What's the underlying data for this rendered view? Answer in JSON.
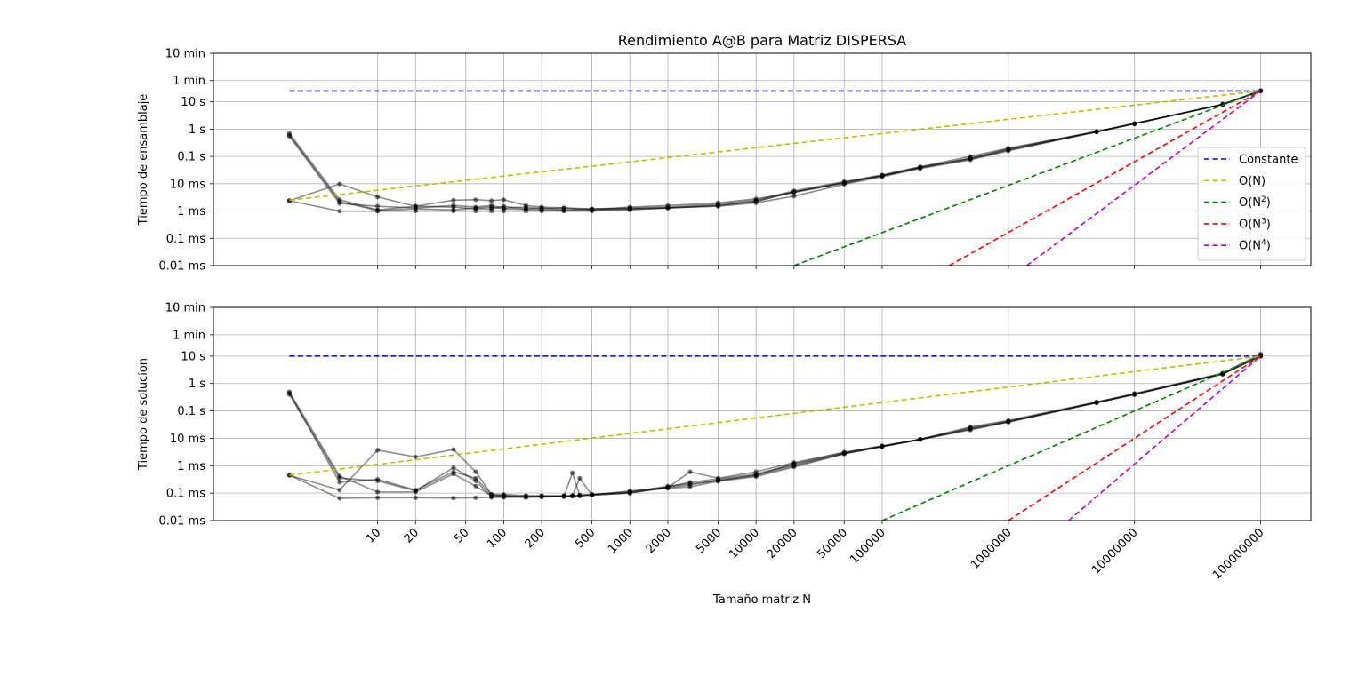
{
  "figure": {
    "title": "Rendimiento A@B para Matriz DISPERSA",
    "xlabel": "Tamaño matriz N"
  },
  "chart_data": [
    {
      "type": "line",
      "title": "Rendimiento A@B para Matriz DISPERSA",
      "ylabel": "Tiempo de ensamblaje",
      "xscale": "log",
      "yscale": "log",
      "xlim": [
        0.5,
        250000000
      ],
      "ylim": [
        1e-05,
        600
      ],
      "x_ticks": [
        10,
        20,
        50,
        100,
        200,
        500,
        1000,
        2000,
        5000,
        10000,
        20000,
        50000,
        100000,
        1000000,
        10000000,
        100000000
      ],
      "y_ticks": [
        {
          "v": 1e-05,
          "label": "0.01 ms"
        },
        {
          "v": 0.0001,
          "label": "0.1 ms"
        },
        {
          "v": 0.001,
          "label": "1 ms"
        },
        {
          "v": 0.01,
          "label": "10 ms"
        },
        {
          "v": 0.1,
          "label": "0.1 s"
        },
        {
          "v": 1,
          "label": "1 s"
        },
        {
          "v": 10,
          "label": "10 s"
        },
        {
          "v": 60,
          "label": "1 min"
        },
        {
          "v": 600,
          "label": "10 min"
        }
      ],
      "grid": true,
      "legend": {
        "position": "right",
        "entries": [
          {
            "label": "Constante",
            "color": "#0000cc",
            "sup": ""
          },
          {
            "label": "O(N)",
            "color": "#bfbf00",
            "sup": ""
          },
          {
            "label": "O(N2)",
            "color": "#008000",
            "sup": "2"
          },
          {
            "label": "O(N3)",
            "color": "#ff0000",
            "sup": "3"
          },
          {
            "label": "O(N4)",
            "color": "#bf00bf",
            "sup": "4"
          }
        ]
      },
      "reference_lines": [
        {
          "name": "Constante",
          "color": "#0000cc",
          "x": [
            2,
            100000000
          ],
          "y": [
            25,
            25
          ]
        },
        {
          "name": "O(N)",
          "color": "#bfbf00",
          "x": [
            2,
            100000000
          ],
          "y": [
            0.0025,
            25
          ]
        },
        {
          "name": "O(N2)",
          "color": "#008000",
          "x": [
            20000,
            100000000
          ],
          "y": [
            1e-05,
            25
          ]
        },
        {
          "name": "O(N3)",
          "color": "#ff0000",
          "x": [
            340000,
            100000000
          ],
          "y": [
            1e-05,
            25
          ]
        },
        {
          "name": "O(N4)",
          "color": "#bf00bf",
          "x": [
            1400000,
            100000000
          ],
          "y": [
            1e-05,
            25
          ]
        }
      ],
      "series": [
        {
          "x": [
            2,
            5,
            10,
            20,
            40,
            60,
            80,
            100,
            150,
            200,
            300,
            500,
            1000,
            2000,
            5000,
            10000,
            20000,
            50000,
            100000,
            200000,
            500000,
            1000000,
            5000000,
            10000000,
            50000000,
            100000000
          ],
          "y": [
            0.6,
            0.0022,
            0.00105,
            0.0012,
            0.0011,
            0.0013,
            0.0014,
            0.0012,
            0.00115,
            0.0011,
            0.00105,
            0.00105,
            0.0012,
            0.0013,
            0.0016,
            0.0022,
            0.005,
            0.011,
            0.02,
            0.04,
            0.085,
            0.18,
            0.8,
            1.6,
            8,
            25
          ]
        },
        {
          "x": [
            2,
            5,
            10,
            20,
            40,
            60,
            80,
            100,
            150,
            200,
            300,
            500,
            1000,
            2000,
            5000,
            10000,
            20000,
            50000,
            100000,
            200000,
            500000,
            1000000,
            5000000,
            10000000,
            50000000,
            100000000
          ],
          "y": [
            0.7,
            0.0026,
            0.0011,
            0.0015,
            0.0014,
            0.0012,
            0.0012,
            0.0015,
            0.0012,
            0.0013,
            0.0011,
            0.0012,
            0.0013,
            0.0014,
            0.0018,
            0.0025,
            0.0055,
            0.012,
            0.021,
            0.042,
            0.1,
            0.2,
            0.82,
            1.6,
            8.2,
            26
          ]
        },
        {
          "x": [
            2,
            5,
            10,
            20,
            40,
            60,
            80,
            100,
            150,
            200,
            300,
            500,
            1000,
            2000,
            5000,
            10000,
            20000,
            50000,
            100000,
            200000,
            500000,
            1000000,
            5000000,
            10000000,
            50000000,
            100000000
          ],
          "y": [
            0.55,
            0.0019,
            0.0015,
            0.0013,
            0.0016,
            0.0014,
            0.0016,
            0.0013,
            0.0014,
            0.0012,
            0.0013,
            0.0011,
            0.0014,
            0.0016,
            0.002,
            0.0028,
            0.0048,
            0.0105,
            0.019,
            0.038,
            0.08,
            0.17,
            0.78,
            1.55,
            8,
            25
          ]
        },
        {
          "x": [
            2,
            5,
            10,
            20,
            40,
            60,
            80,
            100,
            150,
            200,
            300,
            500,
            1000,
            2000,
            5000,
            10000,
            20000,
            50000,
            100000,
            200000,
            500000,
            1000000,
            5000000,
            10000000,
            50000000,
            100000000
          ],
          "y": [
            0.0024,
            0.0098,
            0.0033,
            0.0015,
            0.0025,
            0.0026,
            0.0024,
            0.0026,
            0.0016,
            0.0014,
            0.0013,
            0.0012,
            0.0012,
            0.0013,
            0.0015,
            0.002,
            0.0035,
            0.0095,
            0.018,
            0.036,
            0.075,
            0.16,
            0.8,
            1.6,
            8,
            25
          ]
        },
        {
          "x": [
            2,
            5,
            10,
            20,
            40,
            60,
            80,
            100,
            150,
            200,
            300,
            500,
            1000,
            2000,
            5000,
            10000,
            20000,
            50000,
            100000,
            200000,
            500000,
            1000000,
            5000000,
            10000000,
            50000000,
            100000000
          ],
          "y": [
            0.0024,
            0.00099,
            0.00099,
            0.001,
            0.001,
            0.001,
            0.001,
            0.001,
            0.001,
            0.001,
            0.001,
            0.001,
            0.0011,
            0.0013,
            0.0016,
            0.0023,
            0.005,
            0.011,
            0.02,
            0.04,
            0.085,
            0.19,
            0.8,
            1.6,
            8,
            25
          ]
        }
      ]
    },
    {
      "type": "line",
      "ylabel": "Tiempo de solucion",
      "xlabel": "Tamaño matriz N",
      "xscale": "log",
      "yscale": "log",
      "xlim": [
        0.5,
        250000000
      ],
      "ylim": [
        1e-05,
        600
      ],
      "x_ticks": [
        10,
        20,
        50,
        100,
        200,
        500,
        1000,
        2000,
        5000,
        10000,
        20000,
        50000,
        100000,
        1000000,
        10000000,
        100000000
      ],
      "y_ticks": [
        {
          "v": 1e-05,
          "label": "0.01 ms"
        },
        {
          "v": 0.0001,
          "label": "0.1 ms"
        },
        {
          "v": 0.001,
          "label": "1 ms"
        },
        {
          "v": 0.01,
          "label": "10 ms"
        },
        {
          "v": 0.1,
          "label": "0.1 s"
        },
        {
          "v": 1,
          "label": "1 s"
        },
        {
          "v": 10,
          "label": "10 s"
        },
        {
          "v": 60,
          "label": "1 min"
        },
        {
          "v": 600,
          "label": "10 min"
        }
      ],
      "grid": true,
      "reference_lines": [
        {
          "name": "Constante",
          "color": "#0000cc",
          "x": [
            2,
            100000000
          ],
          "y": [
            10,
            10
          ]
        },
        {
          "name": "O(N)",
          "color": "#bfbf00",
          "x": [
            2,
            100000000
          ],
          "y": [
            0.00045,
            10
          ]
        },
        {
          "name": "O(N2)",
          "color": "#008000",
          "x": [
            100000,
            100000000
          ],
          "y": [
            1e-05,
            10
          ]
        },
        {
          "name": "O(N3)",
          "color": "#ff0000",
          "x": [
            1000000,
            100000000
          ],
          "y": [
            1e-05,
            10
          ]
        },
        {
          "name": "O(N4)",
          "color": "#bf00bf",
          "x": [
            3000000,
            100000000
          ],
          "y": [
            1e-05,
            10
          ]
        }
      ],
      "series": [
        {
          "x": [
            2,
            5,
            10,
            20,
            40,
            60,
            80,
            100,
            150,
            200,
            300,
            350,
            400,
            500,
            1000,
            2000,
            3000,
            5000,
            10000,
            20000,
            50000,
            100000,
            200000,
            500000,
            1000000,
            5000000,
            10000000,
            50000000,
            100000000
          ],
          "y": [
            0.4,
            0.00035,
            0.00028,
            0.00012,
            0.00085,
            0.00028,
            7.5e-05,
            8e-05,
            7.2e-05,
            7.5e-05,
            7.8e-05,
            8e-05,
            8.2e-05,
            8.5e-05,
            0.0001,
            0.00017,
            0.00025,
            0.00033,
            0.0005,
            0.0011,
            0.0028,
            0.005,
            0.009,
            0.022,
            0.04,
            0.2,
            0.4,
            2.2,
            10
          ]
        },
        {
          "x": [
            2,
            5,
            10,
            20,
            40,
            60,
            80,
            100,
            150,
            200,
            300,
            350,
            400,
            500,
            1000,
            2000,
            3000,
            5000,
            10000,
            20000,
            50000,
            100000,
            200000,
            500000,
            1000000,
            5000000,
            10000000,
            50000000,
            100000000
          ],
          "y": [
            0.45,
            0.00025,
            0.00032,
            0.00013,
            0.0006,
            0.00035,
            9e-05,
            7.5e-05,
            8e-05,
            7.8e-05,
            7.5e-05,
            0.00055,
            8.5e-05,
            9e-05,
            0.00011,
            0.00018,
            0.00022,
            0.00028,
            0.00045,
            0.0012,
            0.003,
            0.0052,
            0.0092,
            0.024,
            0.042,
            0.21,
            0.42,
            2.3,
            11
          ]
        },
        {
          "x": [
            2,
            5,
            10,
            20,
            40,
            60,
            80,
            100,
            150,
            200,
            300,
            350,
            400,
            500,
            1000,
            2000,
            3000,
            5000,
            10000,
            20000,
            50000,
            100000,
            200000,
            500000,
            1000000,
            5000000,
            10000000,
            50000000,
            100000000
          ],
          "y": [
            0.5,
            0.00042,
            0.00011,
            0.00011,
            0.0005,
            0.00018,
            8e-05,
            8.2e-05,
            7e-05,
            8e-05,
            8e-05,
            8e-05,
            0.00035,
            8.5e-05,
            0.00012,
            0.00016,
            0.0006,
            0.00035,
            0.0006,
            0.0013,
            0.0031,
            0.0053,
            0.0093,
            0.026,
            0.045,
            0.21,
            0.43,
            2.4,
            12
          ]
        },
        {
          "x": [
            2,
            5,
            10,
            20,
            40,
            60,
            80,
            100,
            150,
            200,
            300,
            350,
            400,
            500,
            1000,
            2000,
            3000,
            5000,
            10000,
            20000,
            50000,
            100000,
            200000,
            500000,
            1000000,
            5000000,
            10000000,
            50000000,
            100000000
          ],
          "y": [
            0.00045,
            0.00013,
            0.0037,
            0.0021,
            0.0039,
            0.0006,
            9e-05,
            9e-05,
            8e-05,
            7.8e-05,
            7.8e-05,
            8e-05,
            8e-05,
            8.8e-05,
            0.00011,
            0.00015,
            0.00017,
            0.00027,
            0.0004,
            0.0009,
            0.0027,
            0.0049,
            0.009,
            0.02,
            0.039,
            0.2,
            0.4,
            2.2,
            10
          ]
        },
        {
          "x": [
            2,
            5,
            10,
            20,
            40,
            60,
            80,
            100,
            150,
            200,
            300,
            350,
            400,
            500,
            1000,
            2000,
            3000,
            5000,
            10000,
            20000,
            50000,
            100000,
            200000,
            500000,
            1000000,
            5000000,
            10000000,
            50000000,
            100000000
          ],
          "y": [
            0.00045,
            6.5e-05,
            6.8e-05,
            6.8e-05,
            6.6e-05,
            6.8e-05,
            7e-05,
            7e-05,
            7.2e-05,
            7.2e-05,
            7.5e-05,
            7.8e-05,
            8e-05,
            8.5e-05,
            0.0001,
            0.00016,
            0.0002,
            0.0003,
            0.00045,
            0.001,
            0.0028,
            0.005,
            0.009,
            0.022,
            0.04,
            0.2,
            0.4,
            2.2,
            10
          ]
        }
      ]
    }
  ]
}
